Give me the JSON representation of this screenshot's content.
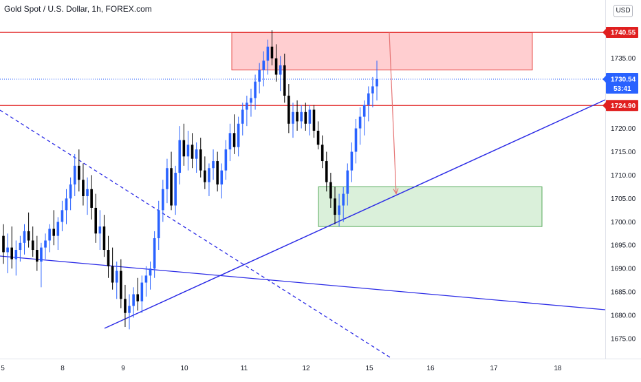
{
  "header": {
    "title": "Gold Spot / U.S. Dollar, 1h, FOREX.com",
    "currency_button": "USD"
  },
  "colors": {
    "up": "#2962ff",
    "down": "#000000",
    "trendline": "#2b2be6",
    "resistance": "#e01f1f",
    "current": "#2962ff",
    "sell_zone_fill": "#ffc9cc",
    "buy_zone_fill": "#d6efd6"
  },
  "chart_data": {
    "type": "candlestick",
    "instrument": "Gold Spot / U.S. Dollar",
    "timeframe": "1h",
    "x_ticks": [
      "5",
      "8",
      "9",
      "10",
      "11",
      "12",
      "15",
      "16",
      "17",
      "18"
    ],
    "y_ticks": [
      1675,
      1680,
      1685,
      1690,
      1695,
      1700,
      1705,
      1710,
      1715,
      1720,
      1725,
      1730,
      1735
    ],
    "ylim": [
      1671.5,
      1743.5
    ],
    "price_labels": [
      {
        "value": "1740.55",
        "role": "resistance"
      },
      {
        "value": "1730.54",
        "role": "last-price",
        "countdown": "53:41"
      },
      {
        "value": "1724.90",
        "role": "level"
      }
    ],
    "ohlc": [
      [
        1697.0,
        1699.5,
        1691.0,
        1693.5
      ],
      [
        1693.5,
        1697.5,
        1689.0,
        1694.5
      ],
      [
        1694.5,
        1699.0,
        1690.0,
        1692.0
      ],
      [
        1692.0,
        1696.0,
        1688.5,
        1694.0
      ],
      [
        1694.0,
        1697.0,
        1691.5,
        1695.5
      ],
      [
        1695.5,
        1699.5,
        1693.0,
        1698.0
      ],
      [
        1698.0,
        1702.0,
        1694.5,
        1696.0
      ],
      [
        1696.0,
        1699.0,
        1692.5,
        1694.0
      ],
      [
        1694.0,
        1697.0,
        1689.5,
        1691.5
      ],
      [
        1691.5,
        1695.5,
        1686.0,
        1694.5
      ],
      [
        1694.5,
        1697.5,
        1692.0,
        1696.0
      ],
      [
        1696.0,
        1699.5,
        1693.5,
        1698.5
      ],
      [
        1698.5,
        1702.5,
        1695.0,
        1697.0
      ],
      [
        1697.0,
        1701.0,
        1694.0,
        1700.0
      ],
      [
        1700.0,
        1704.5,
        1698.0,
        1702.5
      ],
      [
        1702.5,
        1707.0,
        1699.5,
        1705.0
      ],
      [
        1705.0,
        1709.5,
        1702.5,
        1708.0
      ],
      [
        1708.0,
        1714.5,
        1705.5,
        1712.0
      ],
      [
        1712.0,
        1715.5,
        1706.5,
        1709.0
      ],
      [
        1709.0,
        1712.5,
        1703.5,
        1705.5
      ],
      [
        1705.5,
        1709.5,
        1701.5,
        1707.0
      ],
      [
        1707.0,
        1710.0,
        1700.5,
        1703.0
      ],
      [
        1703.0,
        1706.0,
        1695.5,
        1697.5
      ],
      [
        1697.5,
        1702.5,
        1694.0,
        1699.0
      ],
      [
        1699.0,
        1701.5,
        1692.5,
        1694.0
      ],
      [
        1694.0,
        1697.0,
        1688.0,
        1690.5
      ],
      [
        1690.5,
        1694.5,
        1685.5,
        1687.0
      ],
      [
        1687.0,
        1691.5,
        1683.5,
        1689.5
      ],
      [
        1689.5,
        1692.0,
        1681.5,
        1683.5
      ],
      [
        1683.5,
        1686.5,
        1677.5,
        1680.5
      ],
      [
        1680.5,
        1684.5,
        1677.0,
        1682.0
      ],
      [
        1682.0,
        1686.0,
        1679.5,
        1684.5
      ],
      [
        1684.5,
        1688.0,
        1681.0,
        1683.0
      ],
      [
        1683.0,
        1688.5,
        1680.5,
        1687.0
      ],
      [
        1687.0,
        1690.5,
        1684.0,
        1688.5
      ],
      [
        1688.5,
        1691.5,
        1685.5,
        1690.0
      ],
      [
        1690.0,
        1698.0,
        1688.0,
        1696.5
      ],
      [
        1696.5,
        1704.5,
        1694.0,
        1702.5
      ],
      [
        1702.5,
        1709.0,
        1700.0,
        1707.0
      ],
      [
        1707.0,
        1713.5,
        1704.0,
        1711.5
      ],
      [
        1711.5,
        1715.0,
        1702.5,
        1703.5
      ],
      [
        1703.5,
        1712.0,
        1701.5,
        1710.5
      ],
      [
        1710.5,
        1720.5,
        1708.0,
        1717.5
      ],
      [
        1717.5,
        1721.0,
        1712.0,
        1714.0
      ],
      [
        1714.0,
        1719.5,
        1711.0,
        1716.5
      ],
      [
        1716.5,
        1719.0,
        1711.5,
        1713.5
      ],
      [
        1713.5,
        1717.0,
        1710.5,
        1715.5
      ],
      [
        1715.5,
        1718.0,
        1709.5,
        1711.0
      ],
      [
        1711.0,
        1714.0,
        1707.0,
        1708.5
      ],
      [
        1708.5,
        1712.5,
        1705.5,
        1711.5
      ],
      [
        1711.5,
        1715.5,
        1709.0,
        1713.0
      ],
      [
        1713.0,
        1715.0,
        1706.5,
        1708.0
      ],
      [
        1708.0,
        1712.5,
        1705.0,
        1711.0
      ],
      [
        1711.0,
        1717.5,
        1709.0,
        1715.5
      ],
      [
        1715.5,
        1721.0,
        1713.0,
        1719.0
      ],
      [
        1719.0,
        1723.0,
        1714.5,
        1716.0
      ],
      [
        1716.0,
        1722.5,
        1714.0,
        1721.0
      ],
      [
        1721.0,
        1725.5,
        1718.5,
        1724.0
      ],
      [
        1724.0,
        1727.0,
        1720.5,
        1725.5
      ],
      [
        1725.5,
        1728.5,
        1722.5,
        1726.5
      ],
      [
        1726.5,
        1731.5,
        1724.0,
        1730.0
      ],
      [
        1730.0,
        1734.0,
        1727.5,
        1732.5
      ],
      [
        1732.5,
        1736.5,
        1729.0,
        1734.5
      ],
      [
        1734.5,
        1739.0,
        1731.5,
        1737.5
      ],
      [
        1737.5,
        1741.0,
        1733.5,
        1735.0
      ],
      [
        1735.0,
        1738.0,
        1730.0,
        1731.5
      ],
      [
        1731.5,
        1735.5,
        1728.0,
        1733.5
      ],
      [
        1733.5,
        1736.0,
        1725.5,
        1727.0
      ],
      [
        1727.0,
        1729.5,
        1719.0,
        1721.0
      ],
      [
        1721.0,
        1725.5,
        1718.0,
        1723.5
      ],
      [
        1723.5,
        1726.0,
        1719.5,
        1721.5
      ],
      [
        1721.5,
        1725.0,
        1720.0,
        1723.5
      ],
      [
        1723.5,
        1725.5,
        1719.5,
        1721.0
      ],
      [
        1721.0,
        1725.0,
        1718.5,
        1724.0
      ],
      [
        1724.0,
        1725.0,
        1718.0,
        1719.5
      ],
      [
        1719.5,
        1721.5,
        1715.5,
        1716.5
      ],
      [
        1716.5,
        1718.5,
        1711.5,
        1713.0
      ],
      [
        1713.0,
        1715.0,
        1706.5,
        1708.5
      ],
      [
        1708.5,
        1710.5,
        1703.0,
        1705.0
      ],
      [
        1705.0,
        1707.5,
        1699.5,
        1701.5
      ],
      [
        1701.5,
        1706.0,
        1699.0,
        1703.5
      ],
      [
        1703.5,
        1707.5,
        1700.0,
        1706.0
      ],
      [
        1706.0,
        1712.5,
        1703.5,
        1711.0
      ],
      [
        1711.0,
        1717.0,
        1708.5,
        1715.0
      ],
      [
        1715.0,
        1722.0,
        1712.5,
        1720.0
      ],
      [
        1720.0,
        1724.5,
        1716.5,
        1722.5
      ],
      [
        1722.5,
        1726.0,
        1718.5,
        1725.0
      ],
      [
        1725.0,
        1729.0,
        1721.5,
        1727.5
      ],
      [
        1727.5,
        1731.0,
        1724.5,
        1729.0
      ],
      [
        1729.0,
        1734.5,
        1726.0,
        1730.54
      ]
    ],
    "annotations": [
      {
        "type": "sell-zone",
        "y_range": [
          1732.5,
          1740.5
        ]
      },
      {
        "type": "buy-zone",
        "y_range": [
          1699.0,
          1707.5
        ]
      },
      {
        "type": "horizontal-line",
        "value": 1740.55
      },
      {
        "type": "horizontal-line",
        "value": 1724.9
      },
      {
        "type": "rising-trendline"
      },
      {
        "type": "descending-dashed-trendline"
      },
      {
        "type": "descending-trendline"
      },
      {
        "type": "projection-arrow",
        "target": 1706
      }
    ]
  }
}
